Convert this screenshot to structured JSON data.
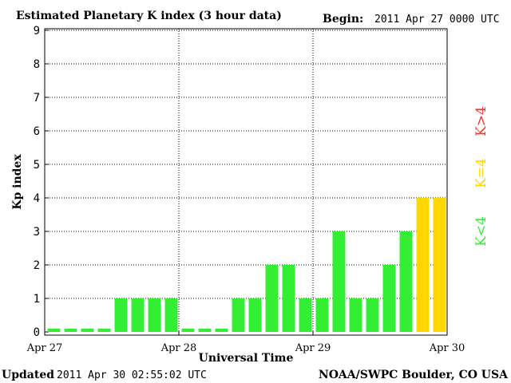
{
  "header": {
    "title": "Estimated Planetary K index (3 hour data)",
    "begin_label": "Begin:",
    "begin_value": "2011 Apr 27 0000 UTC"
  },
  "footer": {
    "updated_label": "Updated",
    "updated_value": "2011 Apr 30 02:55:02 UTC",
    "source": "NOAA/SWPC Boulder, CO USA"
  },
  "legend": {
    "k_greater": "K>4",
    "k_equal": "K=4",
    "k_less": "K<4"
  },
  "colors": {
    "green": "#33ee33",
    "yellow": "#ffd700",
    "red": "#ff3322",
    "axis": "#000000"
  },
  "chart_data": {
    "type": "bar",
    "title": "Estimated Planetary K index (3 hour data)",
    "xlabel": "Universal Time",
    "ylabel": "Kp index",
    "ylim": [
      0,
      9
    ],
    "yticks": [
      "0",
      "1",
      "2",
      "3",
      "4",
      "5",
      "6",
      "7",
      "8",
      "9"
    ],
    "xticks": [
      "Apr 27",
      "Apr 28",
      "Apr 29",
      "Apr 30"
    ],
    "grid": "dotted",
    "values": [
      0,
      0,
      0,
      0,
      1,
      1,
      1,
      1,
      0,
      0,
      0,
      1,
      1,
      2,
      2,
      1,
      1,
      3,
      1,
      1,
      2,
      3,
      4,
      4
    ]
  }
}
